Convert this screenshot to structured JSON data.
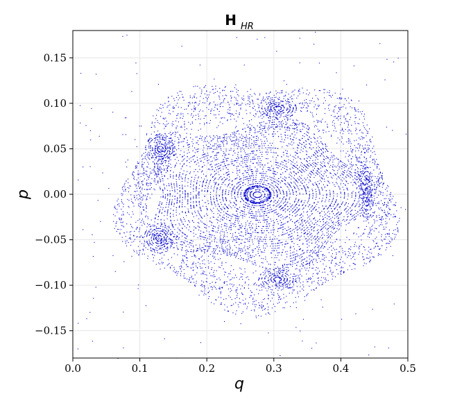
{
  "chart_data": {
    "type": "scatter",
    "title_main": "H",
    "title_sub": "HR",
    "xlabel": "q",
    "ylabel": "p",
    "xlim": [
      0.0,
      0.5
    ],
    "ylim": [
      -0.18,
      0.18
    ],
    "x_ticks": [
      0.0,
      0.1,
      0.2,
      0.3,
      0.4,
      0.5
    ],
    "x_tick_labels": [
      "0.0",
      "0.1",
      "0.2",
      "0.3",
      "0.4",
      "0.5"
    ],
    "y_ticks": [
      0.15,
      0.1,
      0.05,
      0.0,
      -0.05,
      -0.1,
      -0.15
    ],
    "y_tick_labels": [
      "0.15",
      "0.10",
      "0.05",
      "0.00",
      "−0.05",
      "−0.10",
      "−0.15"
    ],
    "grid": true,
    "marker_color": "#0000cc",
    "center": [
      0.275,
      0.0
    ],
    "regular_region": {
      "rx_max": 0.16,
      "ry_max": 0.078
    },
    "chaotic_layer": {
      "rx_min": 0.155,
      "rx_max": 0.205,
      "ry_min": 0.076,
      "ry_max": 0.125
    },
    "islands": [
      {
        "center": [
          0.305,
          0.095
        ],
        "rx": 0.028,
        "ry": 0.012
      },
      {
        "center": [
          0.438,
          0.002
        ],
        "rx": 0.012,
        "ry": 0.028
      },
      {
        "center": [
          0.305,
          -0.093
        ],
        "rx": 0.028,
        "ry": 0.012
      },
      {
        "center": [
          0.128,
          -0.048
        ],
        "rx": 0.022,
        "ry": 0.016
      },
      {
        "center": [
          0.13,
          0.05
        ],
        "rx": 0.022,
        "ry": 0.016
      }
    ]
  }
}
